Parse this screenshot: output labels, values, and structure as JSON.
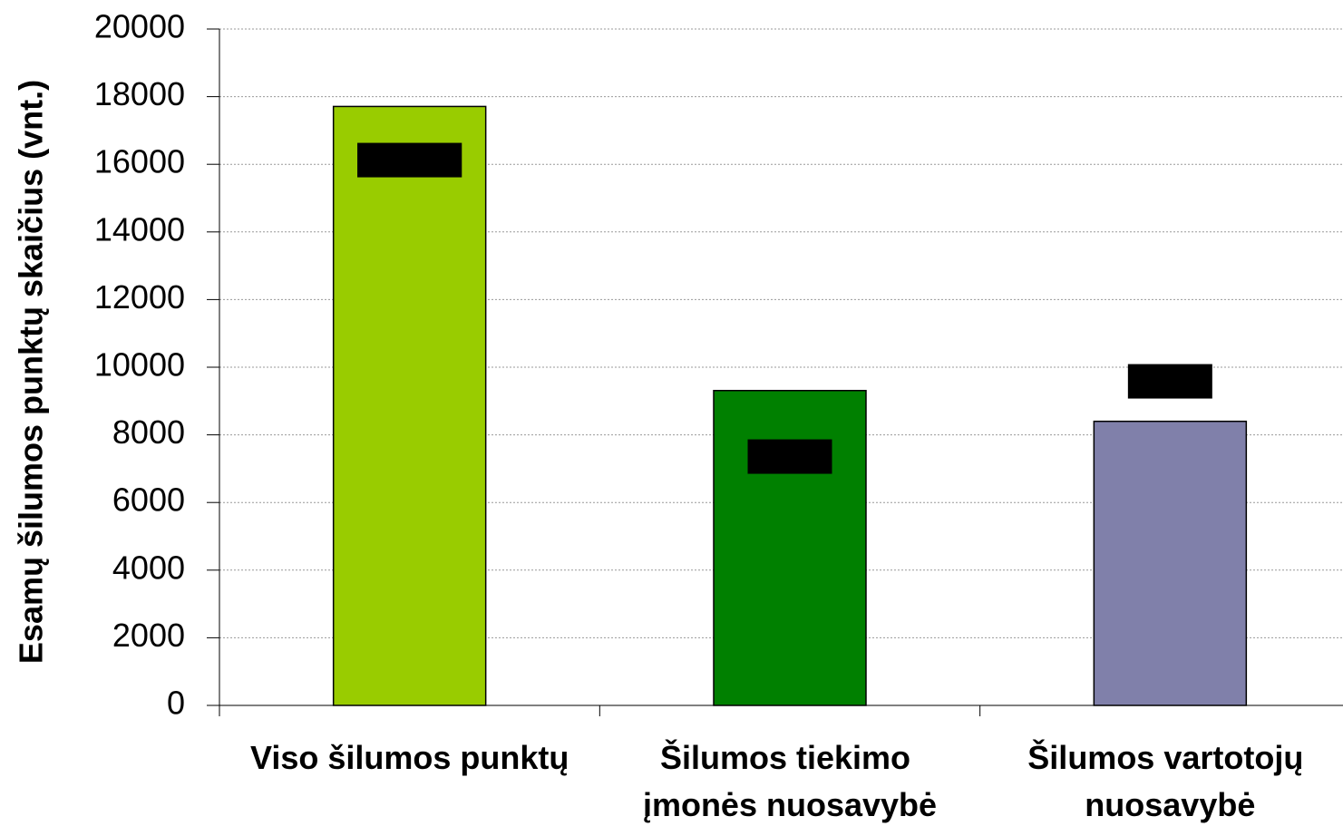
{
  "chart_data": {
    "type": "bar",
    "y_label": "Esamų šilumos punktų skaičius (vnt.)",
    "categories": [
      "Viso šilumos punktų",
      "Šilumos tiekimo įmonės nuosavybė",
      "Šilumos vartotojų nuosavybė"
    ],
    "values": [
      17710,
      9310,
      8400
    ],
    "colors": [
      "#99cc00",
      "#008000",
      "#8080aa"
    ],
    "ylim": [
      0,
      20000
    ],
    "yticks": [
      0,
      2000,
      4000,
      6000,
      8000,
      10000,
      12000,
      14000,
      16000,
      18000,
      20000
    ],
    "grid": true
  }
}
